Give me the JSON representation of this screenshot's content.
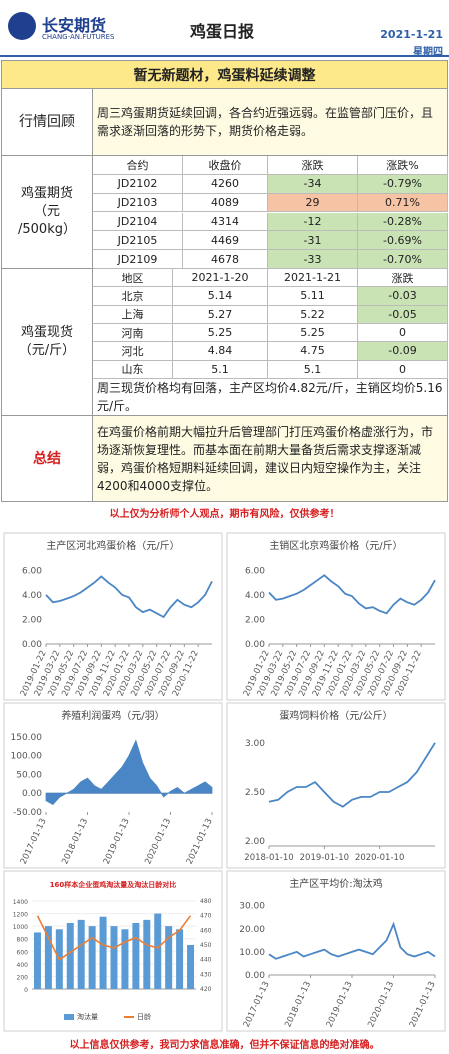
{
  "header": {
    "company": "长安期货",
    "company_en": "CHANG-AN.FUTURES",
    "title": "鸡蛋日报",
    "date": "2021-1-21",
    "weekday": "星期四"
  },
  "headline": "暂无新题材，鸡蛋料延续调整",
  "review": {
    "label": "行情回顾",
    "text": "周三鸡蛋期货延续回调，各合约近强远弱。在监管部门压价，且需求逐渐回落的形势下，期货价格走弱。"
  },
  "futures": {
    "label": [
      "鸡蛋期货",
      "（元",
      "/500kg）"
    ],
    "columns": [
      "合约",
      "收盘价",
      "涨跌",
      "涨跌%"
    ],
    "rows": [
      [
        "JD2102",
        "4260",
        "-34",
        "-0.79%"
      ],
      [
        "JD2103",
        "4089",
        "29",
        "0.71%"
      ],
      [
        "JD2104",
        "4314",
        "-12",
        "-0.28%"
      ],
      [
        "JD2105",
        "4469",
        "-31",
        "-0.69%"
      ],
      [
        "JD2109",
        "4678",
        "-33",
        "-0.70%"
      ]
    ]
  },
  "spot": {
    "label": [
      "鸡蛋现货",
      "（元/斤）"
    ],
    "columns": [
      "地区",
      "2021-1-20",
      "2021-1-21",
      "涨跌"
    ],
    "rows": [
      [
        "北京",
        "5.14",
        "5.11",
        "-0.03"
      ],
      [
        "上海",
        "5.27",
        "5.22",
        "-0.05"
      ],
      [
        "河南",
        "5.25",
        "5.25",
        "0"
      ],
      [
        "河北",
        "4.84",
        "4.75",
        "-0.09"
      ],
      [
        "山东",
        "5.1",
        "5.1",
        "0"
      ]
    ],
    "note": "周三现货价格均有回落，主产区均价4.82元/斤，主销区均价5.16元/斤。"
  },
  "summary": {
    "label": "总结",
    "text": "在鸡蛋价格前期大幅拉升后管理部门打压鸡蛋价格虚涨行为，市场逐渐恢复理性。而基本面在前期大量备货后需求支撑逐渐减弱，鸡蛋价格短期料延续回调，建议日内短空操作为主，关注4200和4000支撑位。"
  },
  "disclaimer": "以上仅为分析师个人观点，期市有风险，仅供参考！",
  "chart_data": [
    {
      "type": "line",
      "title": "主产区河北鸡蛋价格（元/斤）",
      "color": "#4a86c5",
      "categories": [
        "2019-01-22",
        null,
        "2019-03-22",
        null,
        "2019-05-22",
        null,
        "2019-07-22",
        null,
        "2019-09-22",
        null,
        "2019-11-22",
        null,
        "2020-01-22",
        null,
        "2020-03-22",
        null,
        "2020-05-22",
        null,
        "2020-07-22",
        null,
        "2020-09-22",
        null,
        "2020-11-22",
        null,
        null
      ],
      "values": [
        4.0,
        3.4,
        3.5,
        3.7,
        3.9,
        4.2,
        4.6,
        5.0,
        5.5,
        5.0,
        4.6,
        4.0,
        3.8,
        3.0,
        2.6,
        2.8,
        2.5,
        2.2,
        3.0,
        3.6,
        3.2,
        3.0,
        3.4,
        4.0,
        5.1
      ],
      "ylim": [
        0,
        6.6
      ],
      "yticks": [
        {
          "value": 0,
          "label": "0.00"
        },
        {
          "value": 2,
          "label": "2.00"
        },
        {
          "value": 4,
          "label": "4.00"
        },
        {
          "value": 6,
          "label": "6.00"
        }
      ]
    },
    {
      "type": "line",
      "title": "主销区北京鸡蛋价格（元/斤）",
      "color": "#4a86c5",
      "categories": [
        "2019-01-22",
        null,
        "2019-03-22",
        null,
        "2019-05-22",
        null,
        "2019-07-22",
        null,
        "2019-09-22",
        null,
        "2019-11-22",
        null,
        "2020-01-22",
        null,
        "2020-03-22",
        null,
        "2020-05-22",
        null,
        "2020-07-22",
        null,
        "2020-09-22",
        null,
        "2020-11-22",
        null,
        null
      ],
      "values": [
        4.2,
        3.6,
        3.7,
        3.9,
        4.1,
        4.4,
        4.8,
        5.2,
        5.6,
        5.1,
        4.7,
        4.1,
        3.9,
        3.3,
        2.9,
        3.0,
        2.7,
        2.5,
        3.2,
        3.7,
        3.4,
        3.2,
        3.6,
        4.2,
        5.2
      ],
      "ylim": [
        0,
        6.6
      ],
      "yticks": [
        {
          "value": 0,
          "label": "0.00"
        },
        {
          "value": 2,
          "label": "2.00"
        },
        {
          "value": 4,
          "label": "4.00"
        },
        {
          "value": 6,
          "label": "6.00"
        }
      ]
    },
    {
      "type": "area",
      "title": "养殖利润蛋鸡（元/羽）",
      "color": "#4a86c5",
      "categories": [
        "2017-01-13",
        null,
        null,
        null,
        null,
        null,
        "2018-01-13",
        null,
        null,
        null,
        null,
        null,
        "2019-01-13",
        null,
        null,
        null,
        null,
        null,
        "2020-01-13",
        null,
        null,
        null,
        null,
        null,
        "2021-01-13"
      ],
      "values": [
        -20,
        -30,
        -10,
        0,
        10,
        30,
        40,
        20,
        10,
        30,
        50,
        70,
        100,
        140,
        80,
        40,
        20,
        -10,
        5,
        15,
        0,
        10,
        20,
        30,
        15
      ],
      "ylim": [
        -50,
        160
      ],
      "yticks": [
        {
          "value": -50,
          "label": "-50.00"
        },
        {
          "value": 0,
          "label": "0.00"
        },
        {
          "value": 50,
          "label": "50.00"
        },
        {
          "value": 100,
          "label": "100.00"
        },
        {
          "value": 150,
          "label": "150.00"
        }
      ]
    },
    {
      "type": "line",
      "title": "蛋鸡饲料价格（元/公斤）",
      "color": "#4a86c5",
      "categories": [
        "2018-01-10",
        null,
        null,
        null,
        null,
        null,
        "2019-01-10",
        null,
        null,
        null,
        null,
        null,
        "2020-01-10",
        null,
        null,
        null,
        null,
        null,
        null
      ],
      "values": [
        2.4,
        2.42,
        2.5,
        2.55,
        2.55,
        2.6,
        2.5,
        2.4,
        2.35,
        2.42,
        2.45,
        2.45,
        2.5,
        2.5,
        2.55,
        2.6,
        2.7,
        2.85,
        3.0
      ],
      "ylim": [
        1.95,
        3.1
      ],
      "yticks": [
        {
          "value": 2,
          "label": "2.00"
        },
        {
          "value": 2.5,
          "label": "2.50"
        },
        {
          "value": 3,
          "label": "3.00"
        }
      ]
    },
    {
      "type": "bar",
      "title": "160样本企业蛋鸡淘汰量及淘汰日龄对比",
      "categories": [
        null,
        null,
        null,
        null,
        null,
        null,
        null,
        null,
        null,
        null,
        null,
        null,
        null,
        null,
        null
      ],
      "series": [
        {
          "name": "淘汰量",
          "color": "#5b9bd5",
          "values": [
            900,
            1000,
            950,
            1050,
            1100,
            1000,
            1150,
            1000,
            950,
            1050,
            1100,
            1200,
            1000,
            950,
            700
          ]
        },
        {
          "name": "日龄",
          "color": "#ed7d31",
          "axis": "y2",
          "values": [
            470,
            455,
            440,
            445,
            450,
            455,
            450,
            448,
            452,
            455,
            450,
            448,
            455,
            460,
            470
          ]
        }
      ],
      "ylim": [
        0,
        1400
      ],
      "yticks": [
        0,
        200,
        400,
        600,
        800,
        1000,
        1200,
        1400
      ],
      "y2lim": [
        420,
        480
      ],
      "y2ticks": [
        420,
        430,
        440,
        450,
        460,
        470,
        480
      ]
    },
    {
      "type": "line",
      "title": "主产区平均价:淘汰鸡",
      "color": "#4a86c5",
      "categories": [
        "2017-01-13",
        null,
        null,
        null,
        null,
        null,
        "2018-01-13",
        null,
        null,
        null,
        null,
        null,
        "2019-01-13",
        null,
        null,
        null,
        null,
        null,
        "2020-01-13",
        null,
        null,
        null,
        null,
        null,
        "2021-01-13"
      ],
      "values": [
        9,
        7,
        8,
        9,
        10,
        8,
        9,
        10,
        11,
        9,
        8,
        9,
        10,
        11,
        10,
        9,
        12,
        15,
        22,
        12,
        9,
        8,
        9,
        10,
        8
      ],
      "ylim": [
        0,
        32
      ],
      "yticks": [
        {
          "value": 0,
          "label": "0.00"
        },
        {
          "value": 10,
          "label": "10.00"
        },
        {
          "value": 20,
          "label": "20.00"
        },
        {
          "value": 30,
          "label": "30.00"
        }
      ]
    }
  ],
  "footer": "以上信息仅供参考，我司力求信息准确，但并不保证信息的绝对准确。"
}
